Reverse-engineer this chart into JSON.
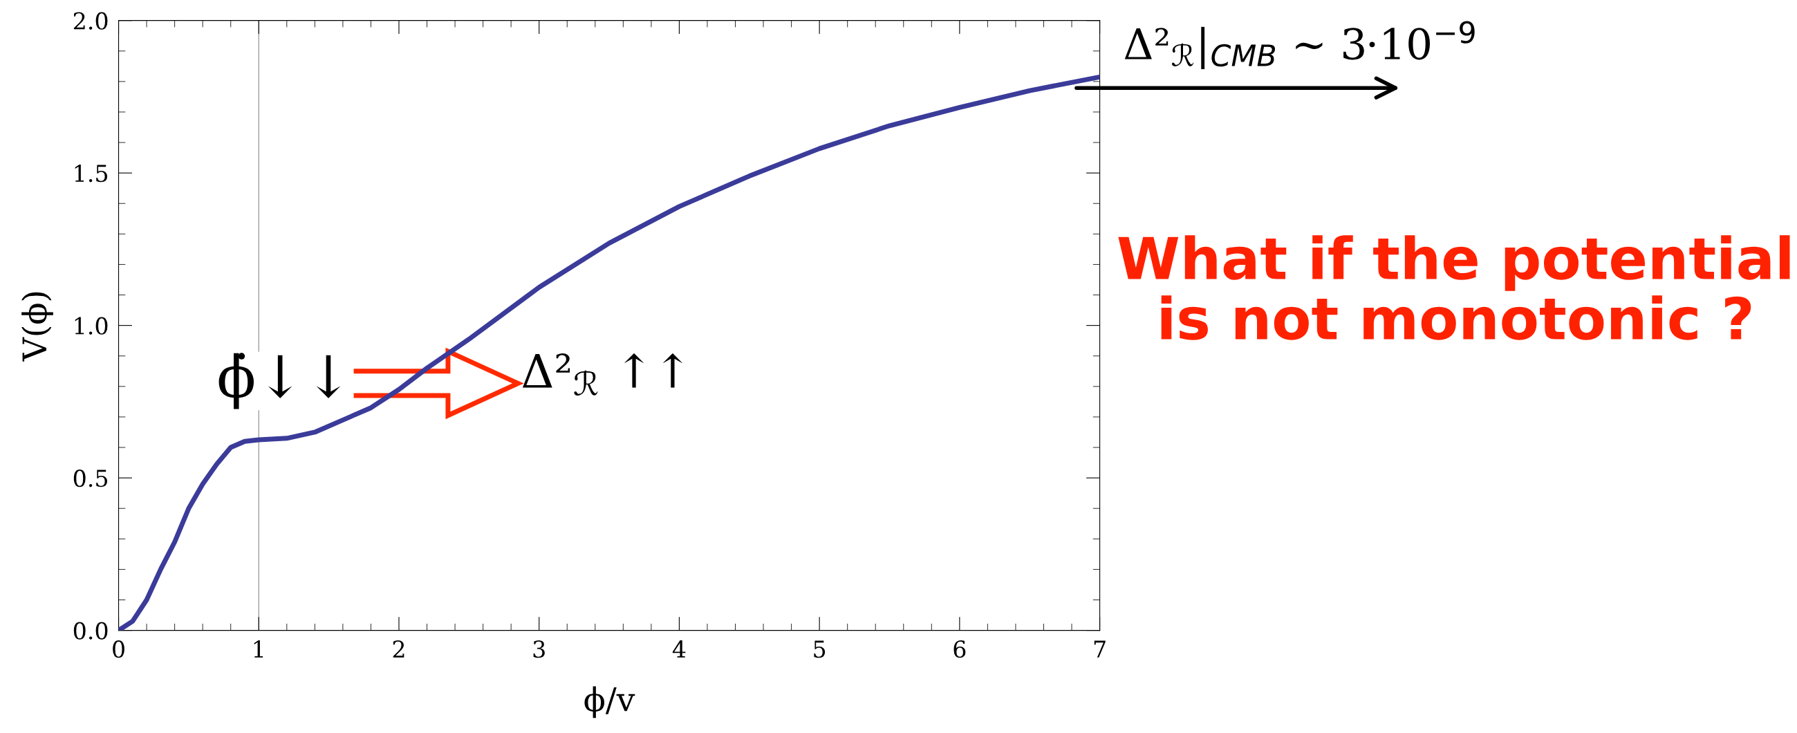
{
  "chart_data": {
    "type": "line",
    "xlabel": "ϕ/v",
    "ylabel": "V(ϕ)",
    "x": [
      0,
      0.1,
      0.2,
      0.3,
      0.4,
      0.5,
      0.6,
      0.7,
      0.8,
      0.9,
      1.0,
      1.2,
      1.4,
      1.6,
      1.8,
      2.0,
      2.2,
      2.5,
      3.0,
      3.5,
      4.0,
      4.5,
      5.0,
      5.5,
      6.0,
      6.5,
      7.0
    ],
    "series": [
      {
        "color": "#3b3b9a",
        "values": [
          0,
          0.03,
          0.1,
          0.2,
          0.29,
          0.4,
          0.48,
          0.545,
          0.6,
          0.62,
          0.625,
          0.63,
          0.65,
          0.69,
          0.73,
          0.79,
          0.86,
          0.955,
          1.125,
          1.27,
          1.39,
          1.49,
          1.58,
          1.655,
          1.715,
          1.77,
          1.815
        ]
      }
    ],
    "xlim": [
      0,
      7
    ],
    "ylim": [
      0,
      2.0
    ],
    "xticks": [
      0,
      {
        "value": 0.2,
        "label": null
      },
      {
        "value": 0.4,
        "label": null
      },
      {
        "value": 0.6,
        "label": null
      },
      {
        "value": 0.8,
        "label": null
      },
      1,
      {
        "value": 1.2,
        "label": null
      },
      {
        "value": 1.4,
        "label": null
      },
      {
        "value": 1.6,
        "label": null
      },
      {
        "value": 1.8,
        "label": null
      },
      2,
      {
        "value": 2.2,
        "label": null
      },
      {
        "value": 2.4,
        "label": null
      },
      {
        "value": 2.6,
        "label": null
      },
      {
        "value": 2.8,
        "label": null
      },
      3,
      {
        "value": 3.2,
        "label": null
      },
      {
        "value": 3.4,
        "label": null
      },
      {
        "value": 3.6,
        "label": null
      },
      {
        "value": 3.8,
        "label": null
      },
      4,
      {
        "value": 4.2,
        "label": null
      },
      {
        "value": 4.4,
        "label": null
      },
      {
        "value": 4.6,
        "label": null
      },
      {
        "value": 4.8,
        "label": null
      },
      5,
      {
        "value": 5.2,
        "label": null
      },
      {
        "value": 5.4,
        "label": null
      },
      {
        "value": 5.6,
        "label": null
      },
      {
        "value": 5.8,
        "label": null
      },
      6,
      {
        "value": 6.2,
        "label": null
      },
      {
        "value": 6.4,
        "label": null
      },
      {
        "value": 6.6,
        "label": null
      },
      {
        "value": 6.8,
        "label": null
      },
      7
    ],
    "yticks": [
      {
        "value": 0,
        "label": "0.0"
      },
      {
        "value": 0.1,
        "label": null
      },
      {
        "value": 0.2,
        "label": null
      },
      {
        "value": 0.3,
        "label": null
      },
      {
        "value": 0.4,
        "label": null
      },
      {
        "value": 0.5,
        "label": "0.5"
      },
      {
        "value": 0.6,
        "label": null
      },
      {
        "value": 0.7,
        "label": null
      },
      {
        "value": 0.8,
        "label": null
      },
      {
        "value": 0.9,
        "label": null
      },
      {
        "value": 1.0,
        "label": "1.0"
      },
      {
        "value": 1.1,
        "label": null
      },
      {
        "value": 1.2,
        "label": null
      },
      {
        "value": 1.3,
        "label": null
      },
      {
        "value": 1.4,
        "label": null
      },
      {
        "value": 1.5,
        "label": "1.5"
      },
      {
        "value": 1.6,
        "label": null
      },
      {
        "value": 1.7,
        "label": null
      },
      {
        "value": 1.8,
        "label": null
      },
      {
        "value": 1.9,
        "label": null
      },
      {
        "value": 2.0,
        "label": "2.0"
      }
    ],
    "ref_lines": [
      {
        "axis": "x",
        "value": 1,
        "color": "#a0a0a0"
      }
    ],
    "grid": false,
    "legend": false,
    "marker": "none",
    "line_style": "solid",
    "annotations": [
      "ϕ̇↓↓",
      "Δ²$_{ℛ}$ ↑↑",
      "Δ²$_{ℛ}$|$_{CMB}$ ∼ 3·10$^{−9}$",
      "What if the potential\nis not monotonic ?"
    ]
  }
}
